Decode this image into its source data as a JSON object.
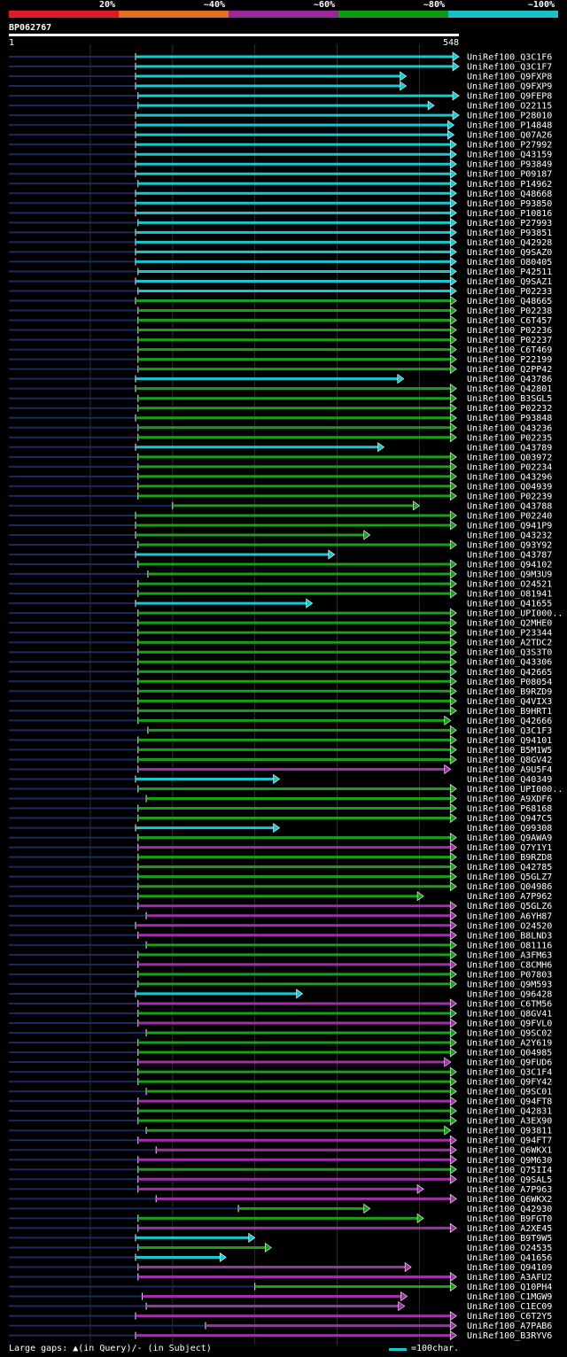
{
  "legend": [
    {
      "label": "20%",
      "color": "#e01828"
    },
    {
      "label": "~40%",
      "color": "#e07020"
    },
    {
      "label": "~60%",
      "color": "#982898"
    },
    {
      "label": "~80%",
      "color": "#109818"
    },
    {
      "label": "~100%",
      "color": "#18c0c8"
    }
  ],
  "query": {
    "id": "BP062767",
    "start_label": "1",
    "end_label": "548"
  },
  "footer": {
    "gaps_note": "Large gaps: ▲(in Query)/- (in Subject)",
    "scale_note": "=100char."
  },
  "chart_data": {
    "type": "alignment",
    "title": "BP062767",
    "query_length": 548,
    "colors": {
      "c": "#18c8d0",
      "g": "#18a018",
      "p": "#a030a8",
      "line": "#1c2a60",
      "grid": "#303030"
    },
    "hits": [
      {
        "id": "UniRef100_Q3C1F6",
        "s": 155,
        "e": 548,
        "c": "c"
      },
      {
        "id": "UniRef100_Q3C1F7",
        "s": 155,
        "e": 548,
        "c": "c"
      },
      {
        "id": "UniRef100_Q9FXP8",
        "s": 155,
        "e": 484,
        "c": "c"
      },
      {
        "id": "UniRef100_Q9FXP9",
        "s": 155,
        "e": 484,
        "c": "c"
      },
      {
        "id": "UniRef100_Q9FEP8",
        "s": 158,
        "e": 548,
        "c": "c"
      },
      {
        "id": "UniRef100_O22115",
        "s": 158,
        "e": 518,
        "c": "c"
      },
      {
        "id": "UniRef100_P28010",
        "s": 155,
        "e": 548,
        "c": "c"
      },
      {
        "id": "UniRef100_P14848",
        "s": 155,
        "e": 542,
        "c": "c"
      },
      {
        "id": "UniRef100_Q07A26",
        "s": 155,
        "e": 542,
        "c": "c"
      },
      {
        "id": "UniRef100_P27992",
        "s": 155,
        "e": 545,
        "c": "c"
      },
      {
        "id": "UniRef100_Q43159",
        "s": 155,
        "e": 545,
        "c": "c"
      },
      {
        "id": "UniRef100_P93849",
        "s": 155,
        "e": 545,
        "c": "c"
      },
      {
        "id": "UniRef100_P09187",
        "s": 155,
        "e": 545,
        "c": "c"
      },
      {
        "id": "UniRef100_P14962",
        "s": 158,
        "e": 545,
        "c": "c"
      },
      {
        "id": "UniRef100_Q48668",
        "s": 155,
        "e": 545,
        "c": "c"
      },
      {
        "id": "UniRef100_P93850",
        "s": 155,
        "e": 545,
        "c": "c"
      },
      {
        "id": "UniRef100_P10816",
        "s": 155,
        "e": 545,
        "c": "c"
      },
      {
        "id": "UniRef100_P27993",
        "s": 158,
        "e": 545,
        "c": "c"
      },
      {
        "id": "UniRef100_P93851",
        "s": 155,
        "e": 545,
        "c": "c"
      },
      {
        "id": "UniRef100_Q42928",
        "s": 155,
        "e": 545,
        "c": "c"
      },
      {
        "id": "UniRef100_Q9SAZ0",
        "s": 155,
        "e": 545,
        "c": "c"
      },
      {
        "id": "UniRef100_O80405",
        "s": 155,
        "e": 545,
        "c": "c"
      },
      {
        "id": "UniRef100_P42511",
        "s": 158,
        "e": 545,
        "c": "c"
      },
      {
        "id": "UniRef100_Q9SAZ1",
        "s": 155,
        "e": 545,
        "c": "c"
      },
      {
        "id": "UniRef100_P02233",
        "s": 158,
        "e": 545,
        "c": "c"
      },
      {
        "id": "UniRef100_Q48665",
        "s": 155,
        "e": 545,
        "c": "g"
      },
      {
        "id": "UniRef100_P02238",
        "s": 158,
        "e": 545,
        "c": "g"
      },
      {
        "id": "UniRef100_C6T457",
        "s": 158,
        "e": 545,
        "c": "g"
      },
      {
        "id": "UniRef100_P02236",
        "s": 158,
        "e": 545,
        "c": "g"
      },
      {
        "id": "UniRef100_P02237",
        "s": 158,
        "e": 545,
        "c": "g"
      },
      {
        "id": "UniRef100_C6T469",
        "s": 158,
        "e": 545,
        "c": "g"
      },
      {
        "id": "UniRef100_P22199",
        "s": 158,
        "e": 545,
        "c": "g"
      },
      {
        "id": "UniRef100_Q2PP42",
        "s": 158,
        "e": 545,
        "c": "g"
      },
      {
        "id": "UniRef100_Q43786",
        "s": 155,
        "e": 481,
        "c": "c"
      },
      {
        "id": "UniRef100_Q42801",
        "s": 155,
        "e": 545,
        "c": "g"
      },
      {
        "id": "UniRef100_B3SGL5",
        "s": 158,
        "e": 545,
        "c": "g"
      },
      {
        "id": "UniRef100_P02232",
        "s": 158,
        "e": 545,
        "c": "g"
      },
      {
        "id": "UniRef100_P93848",
        "s": 155,
        "e": 545,
        "c": "g"
      },
      {
        "id": "UniRef100_Q43236",
        "s": 158,
        "e": 545,
        "c": "g"
      },
      {
        "id": "UniRef100_P02235",
        "s": 158,
        "e": 545,
        "c": "g"
      },
      {
        "id": "UniRef100_Q43789",
        "s": 155,
        "e": 457,
        "c": "c"
      },
      {
        "id": "UniRef100_Q03972",
        "s": 158,
        "e": 545,
        "c": "g"
      },
      {
        "id": "UniRef100_P02234",
        "s": 158,
        "e": 545,
        "c": "g"
      },
      {
        "id": "UniRef100_Q43296",
        "s": 158,
        "e": 545,
        "c": "g"
      },
      {
        "id": "UniRef100_Q04939",
        "s": 158,
        "e": 545,
        "c": "g"
      },
      {
        "id": "UniRef100_P02239",
        "s": 158,
        "e": 545,
        "c": "g"
      },
      {
        "id": "UniRef100_Q43788",
        "s": 200,
        "e": 500,
        "c": "g"
      },
      {
        "id": "UniRef100_P02240",
        "s": 155,
        "e": 545,
        "c": "g"
      },
      {
        "id": "UniRef100_Q941P9",
        "s": 155,
        "e": 545,
        "c": "g"
      },
      {
        "id": "UniRef100_Q43232",
        "s": 155,
        "e": 440,
        "c": "g"
      },
      {
        "id": "UniRef100_Q93Y92",
        "s": 158,
        "e": 545,
        "c": "g"
      },
      {
        "id": "UniRef100_Q43787",
        "s": 155,
        "e": 397,
        "c": "c"
      },
      {
        "id": "UniRef100_Q94102",
        "s": 158,
        "e": 545,
        "c": "g"
      },
      {
        "id": "UniRef100_Q9M3U9",
        "s": 170,
        "e": 545,
        "c": "g"
      },
      {
        "id": "UniRef100_O24521",
        "s": 158,
        "e": 545,
        "c": "g"
      },
      {
        "id": "UniRef100_O81941",
        "s": 158,
        "e": 545,
        "c": "g"
      },
      {
        "id": "UniRef100_Q41655",
        "s": 155,
        "e": 370,
        "c": "c"
      },
      {
        "id": "UniRef100_UPI000..",
        "s": 158,
        "e": 545,
        "c": "g"
      },
      {
        "id": "UniRef100_Q2MHE0",
        "s": 158,
        "e": 545,
        "c": "g"
      },
      {
        "id": "UniRef100_P23344",
        "s": 158,
        "e": 545,
        "c": "g"
      },
      {
        "id": "UniRef100_A2TDC2",
        "s": 158,
        "e": 545,
        "c": "g"
      },
      {
        "id": "UniRef100_Q3S3T0",
        "s": 158,
        "e": 545,
        "c": "g"
      },
      {
        "id": "UniRef100_Q43306",
        "s": 158,
        "e": 545,
        "c": "g"
      },
      {
        "id": "UniRef100_Q42665",
        "s": 158,
        "e": 545,
        "c": "g"
      },
      {
        "id": "UniRef100_P08054",
        "s": 158,
        "e": 545,
        "c": "g"
      },
      {
        "id": "UniRef100_B9RZD9",
        "s": 158,
        "e": 545,
        "c": "g"
      },
      {
        "id": "UniRef100_Q4VIX3",
        "s": 158,
        "e": 545,
        "c": "g"
      },
      {
        "id": "UniRef100_B9HRT1",
        "s": 158,
        "e": 545,
        "c": "g"
      },
      {
        "id": "UniRef100_Q42666",
        "s": 158,
        "e": 538,
        "c": "g"
      },
      {
        "id": "UniRef100_Q3C1F3",
        "s": 170,
        "e": 545,
        "c": "g"
      },
      {
        "id": "UniRef100_Q94101",
        "s": 158,
        "e": 545,
        "c": "g"
      },
      {
        "id": "UniRef100_B5M1W5",
        "s": 158,
        "e": 545,
        "c": "g"
      },
      {
        "id": "UniRef100_Q8GV42",
        "s": 158,
        "e": 545,
        "c": "g"
      },
      {
        "id": "UniRef100_A9U5F4",
        "s": 158,
        "e": 538,
        "c": "p"
      },
      {
        "id": "UniRef100_Q40349",
        "s": 155,
        "e": 330,
        "c": "c"
      },
      {
        "id": "UniRef100_UPI000..",
        "s": 158,
        "e": 545,
        "c": "g"
      },
      {
        "id": "UniRef100_A9XDF6",
        "s": 168,
        "e": 545,
        "c": "g"
      },
      {
        "id": "UniRef100_P68168",
        "s": 158,
        "e": 545,
        "c": "g"
      },
      {
        "id": "UniRef100_Q947C5",
        "s": 158,
        "e": 545,
        "c": "g"
      },
      {
        "id": "UniRef100_Q99308",
        "s": 155,
        "e": 330,
        "c": "c"
      },
      {
        "id": "UniRef100_Q9AWA9",
        "s": 158,
        "e": 545,
        "c": "g"
      },
      {
        "id": "UniRef100_Q7Y1Y1",
        "s": 158,
        "e": 545,
        "c": "p"
      },
      {
        "id": "UniRef100_B9RZD8",
        "s": 158,
        "e": 545,
        "c": "g"
      },
      {
        "id": "UniRef100_Q42785",
        "s": 158,
        "e": 545,
        "c": "g"
      },
      {
        "id": "UniRef100_Q5GLZ7",
        "s": 158,
        "e": 545,
        "c": "g"
      },
      {
        "id": "UniRef100_Q04986",
        "s": 158,
        "e": 545,
        "c": "g"
      },
      {
        "id": "UniRef100_A7P962",
        "s": 158,
        "e": 505,
        "c": "g"
      },
      {
        "id": "UniRef100_Q5GLZ6",
        "s": 158,
        "e": 545,
        "c": "p"
      },
      {
        "id": "UniRef100_A6YH87",
        "s": 168,
        "e": 545,
        "c": "p"
      },
      {
        "id": "UniRef100_O24520",
        "s": 155,
        "e": 545,
        "c": "p"
      },
      {
        "id": "UniRef100_B8LND3",
        "s": 158,
        "e": 545,
        "c": "p"
      },
      {
        "id": "UniRef100_O81116",
        "s": 168,
        "e": 545,
        "c": "g"
      },
      {
        "id": "UniRef100_A3FM63",
        "s": 158,
        "e": 545,
        "c": "g"
      },
      {
        "id": "UniRef100_C8CMH6",
        "s": 158,
        "e": 545,
        "c": "p"
      },
      {
        "id": "UniRef100_P07803",
        "s": 158,
        "e": 545,
        "c": "g"
      },
      {
        "id": "UniRef100_Q9M593",
        "s": 158,
        "e": 545,
        "c": "g"
      },
      {
        "id": "UniRef100_Q96428",
        "s": 155,
        "e": 358,
        "c": "c"
      },
      {
        "id": "UniRef100_C6TM56",
        "s": 158,
        "e": 545,
        "c": "p"
      },
      {
        "id": "UniRef100_Q8GV41",
        "s": 158,
        "e": 545,
        "c": "g"
      },
      {
        "id": "UniRef100_Q9FVL0",
        "s": 158,
        "e": 545,
        "c": "p"
      },
      {
        "id": "UniRef100_Q9SC02",
        "s": 168,
        "e": 545,
        "c": "g"
      },
      {
        "id": "UniRef100_A2Y619",
        "s": 158,
        "e": 545,
        "c": "g"
      },
      {
        "id": "UniRef100_Q04985",
        "s": 158,
        "e": 545,
        "c": "g"
      },
      {
        "id": "UniRef100_Q9FUD6",
        "s": 158,
        "e": 538,
        "c": "p"
      },
      {
        "id": "UniRef100_Q3C1F4",
        "s": 158,
        "e": 545,
        "c": "g"
      },
      {
        "id": "UniRef100_Q9FY42",
        "s": 158,
        "e": 545,
        "c": "g"
      },
      {
        "id": "UniRef100_Q9SC01",
        "s": 168,
        "e": 545,
        "c": "g"
      },
      {
        "id": "UniRef100_Q94FT8",
        "s": 158,
        "e": 545,
        "c": "p"
      },
      {
        "id": "UniRef100_Q42831",
        "s": 158,
        "e": 545,
        "c": "g"
      },
      {
        "id": "UniRef100_A3EX90",
        "s": 158,
        "e": 545,
        "c": "g"
      },
      {
        "id": "UniRef100_Q93811",
        "s": 168,
        "e": 538,
        "c": "g"
      },
      {
        "id": "UniRef100_Q94FT7",
        "s": 158,
        "e": 545,
        "c": "p"
      },
      {
        "id": "UniRef100_Q6WKX1",
        "s": 180,
        "e": 545,
        "c": "p"
      },
      {
        "id": "UniRef100_Q9M630",
        "s": 158,
        "e": 545,
        "c": "p"
      },
      {
        "id": "UniRef100_Q75II4",
        "s": 158,
        "e": 545,
        "c": "g"
      },
      {
        "id": "UniRef100_Q9SAL5",
        "s": 158,
        "e": 545,
        "c": "p"
      },
      {
        "id": "UniRef100_A7P963",
        "s": 158,
        "e": 505,
        "c": "p"
      },
      {
        "id": "UniRef100_Q6WKX2",
        "s": 180,
        "e": 545,
        "c": "p"
      },
      {
        "id": "UniRef100_Q42930",
        "s": 280,
        "e": 440,
        "c": "g"
      },
      {
        "id": "UniRef100_B9FGT0",
        "s": 158,
        "e": 505,
        "c": "g"
      },
      {
        "id": "UniRef100_A2XE45",
        "s": 158,
        "e": 545,
        "c": "p"
      },
      {
        "id": "UniRef100_B9T9W5",
        "s": 155,
        "e": 300,
        "c": "c"
      },
      {
        "id": "UniRef100_O24535",
        "s": 158,
        "e": 320,
        "c": "g"
      },
      {
        "id": "UniRef100_Q41656",
        "s": 155,
        "e": 265,
        "c": "c"
      },
      {
        "id": "UniRef100_Q94109",
        "s": 158,
        "e": 490,
        "c": "p"
      },
      {
        "id": "UniRef100_A3AFU2",
        "s": 158,
        "e": 545,
        "c": "p"
      },
      {
        "id": "UniRef100_Q10PH4",
        "s": 300,
        "e": 545,
        "c": "g"
      },
      {
        "id": "UniRef100_C1MGW9",
        "s": 163,
        "e": 485,
        "c": "p"
      },
      {
        "id": "UniRef100_C1EC09",
        "s": 168,
        "e": 482,
        "c": "p"
      },
      {
        "id": "UniRef100_C6T2Y5",
        "s": 155,
        "e": 545,
        "c": "p"
      },
      {
        "id": "UniRef100_A7PAB6",
        "s": 240,
        "e": 545,
        "c": "p"
      },
      {
        "id": "UniRef100_B3RYV6",
        "s": 155,
        "e": 545,
        "c": "p"
      }
    ]
  }
}
